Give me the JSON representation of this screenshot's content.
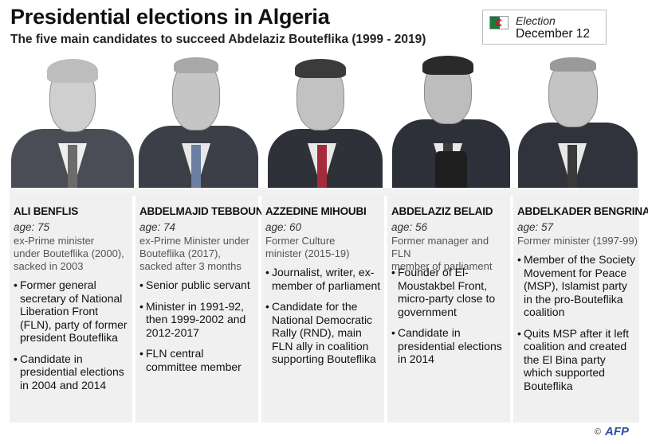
{
  "title": "Presidential elections in Algeria",
  "subtitle": "The five main candidates to succeed Abdelaziz Bouteflika (1999 - 2019)",
  "election": {
    "label": "Election",
    "date": "December 12"
  },
  "candidates": [
    {
      "name": "ALI BENFLIS",
      "age": "age: 75",
      "role": [
        "ex-Prime minister",
        "under Bouteflika (2000),",
        "sacked in 2003"
      ],
      "bullets": [
        "Former general secretary of National Liberation Front (FLN), party of former president Bouteflika",
        "Candidate in presidential elections in 2004 and 2014"
      ]
    },
    {
      "name": "ABDELMAJID TEBBOUNE",
      "age": "age: 74",
      "role": [
        "ex-Prime Minister under",
        "Bouteflika (2017),",
        "sacked after 3 months"
      ],
      "bullets": [
        "Senior public servant",
        "Minister in 1991-92, then 1999-2002 and 2012-2017",
        "FLN central committee member"
      ]
    },
    {
      "name": "AZZEDINE MIHOUBI",
      "age": "age: 60",
      "role": [
        "Former Culture",
        "minister (2015-19)"
      ],
      "bullets": [
        "Journalist, writer, ex-member of parliament",
        "Candidate for the National Democratic Rally (RND), main FLN ally in coalition supporting Bouteflika"
      ]
    },
    {
      "name": "ABDELAZIZ BELAID",
      "age": "age: 56",
      "role": [
        "Former manager and FLN",
        "member of parliament"
      ],
      "bullets": [
        "Founder of El-Moustakbel Front, micro-party close to government",
        "Candidate in presidential elections in 2014"
      ]
    },
    {
      "name": "ABDELKADER BENGRINA",
      "age": "age: 57",
      "role": [
        "Former minister (1997-99)"
      ],
      "bullets": [
        "Member of the Society Movement for Peace (MSP), Islamist party in the pro-Bouteflika coalition",
        "Quits MSP after it left coalition and created the El Bina party which supported Bouteflika"
      ]
    }
  ],
  "credit": {
    "copyright": "©",
    "agency": "AFP"
  },
  "colors": {
    "column_bg": "#f0f0f0",
    "flag_green": "#1a7a3c",
    "flag_red": "#d21034",
    "afp_blue": "#2a52a8"
  }
}
